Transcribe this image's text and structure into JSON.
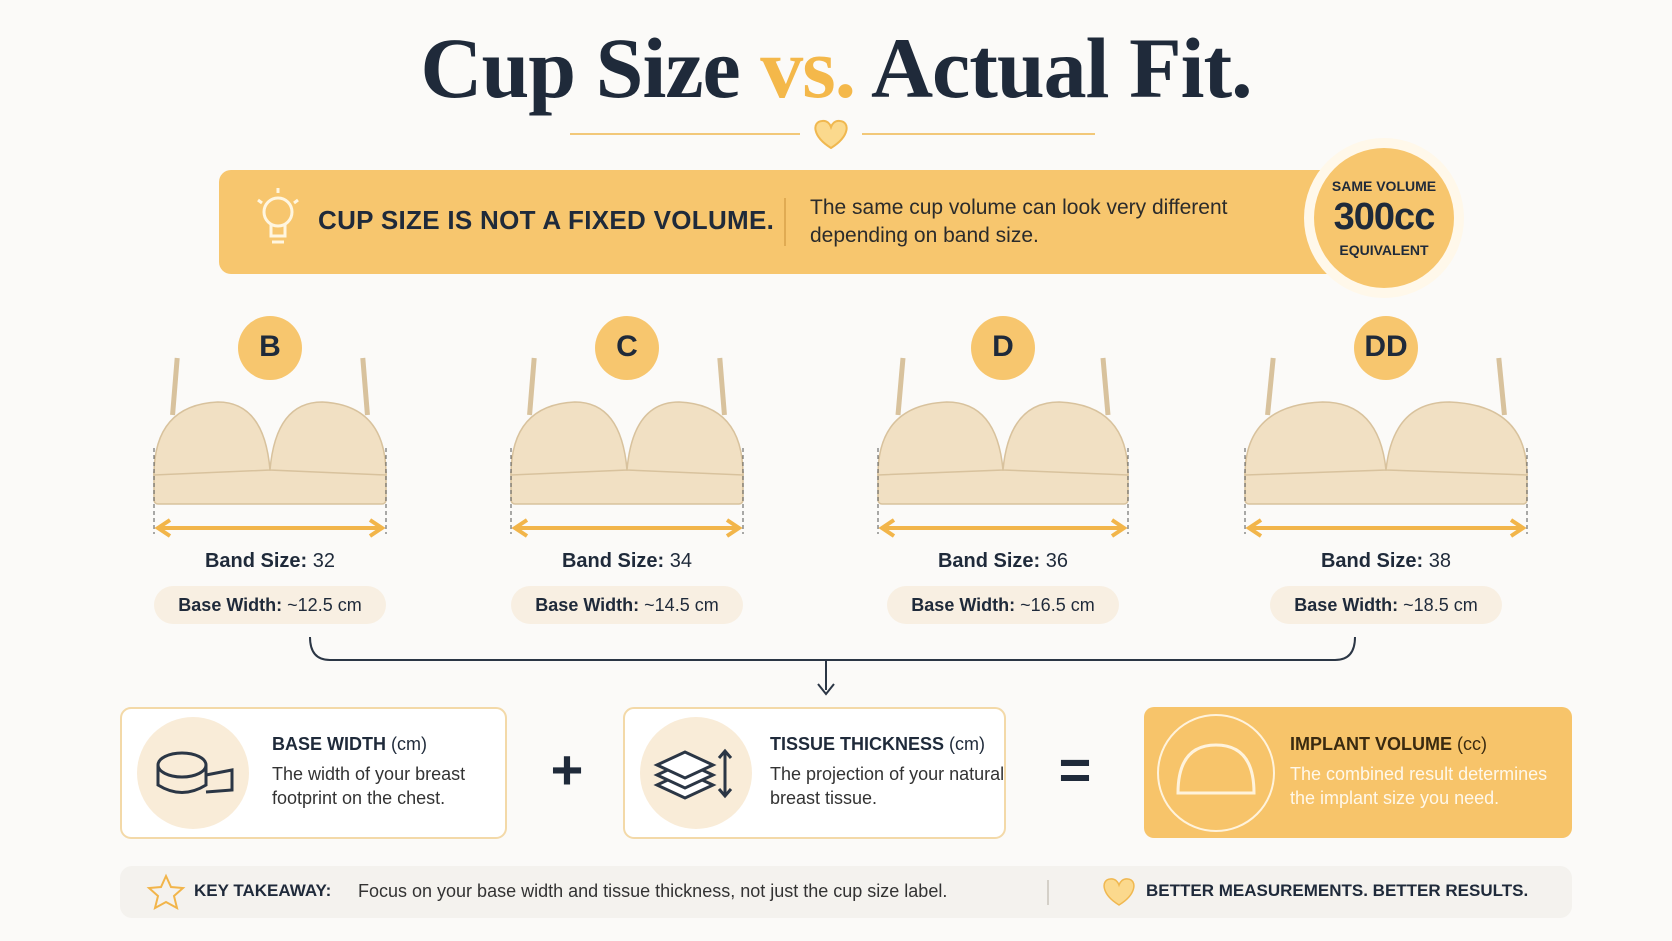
{
  "header": {
    "title_start": "Cup Size",
    "title_accent": "vs.",
    "title_end": "Actual Fit."
  },
  "banner": {
    "heading": "CUP SIZE IS NOT A FIXED VOLUME.",
    "text": "The same cup volume can look very different depending on band size.",
    "badge": {
      "top": "SAME VOLUME",
      "value": "300cc",
      "bottom": "EQUIVALENT"
    }
  },
  "cups": [
    {
      "cup": "B",
      "band_label": "Band Size:",
      "band": "32",
      "width_label": "Base Width:",
      "width": "~12.5 cm"
    },
    {
      "cup": "C",
      "band_label": "Band Size:",
      "band": "34",
      "width_label": "Base Width:",
      "width": "~14.5 cm"
    },
    {
      "cup": "D",
      "band_label": "Band Size:",
      "band": "36",
      "width_label": "Base Width:",
      "width": "~16.5 cm"
    },
    {
      "cup": "DD",
      "band_label": "Band Size:",
      "band": "38",
      "width_label": "Base Width:",
      "width": "~18.5 cm"
    }
  ],
  "formula": {
    "items": [
      {
        "title": "BASE WIDTH",
        "unit": "(cm)",
        "text": "The width of your breast footprint on the chest."
      },
      {
        "title": "TISSUE THICKNESS",
        "unit": "(cm)",
        "text": "The projection of your natural breast tissue."
      },
      {
        "title": "IMPLANT VOLUME",
        "unit": "(cc)",
        "text": "The combined result determines the implant size you need."
      }
    ],
    "plus": "+",
    "equals": "="
  },
  "footer": {
    "label": "KEY TAKEAWAY:",
    "text": "Focus on your base width and tissue thickness, not just the cup size label.",
    "slogan": "BETTER MEASUREMENTS. BETTER RESULTS."
  }
}
